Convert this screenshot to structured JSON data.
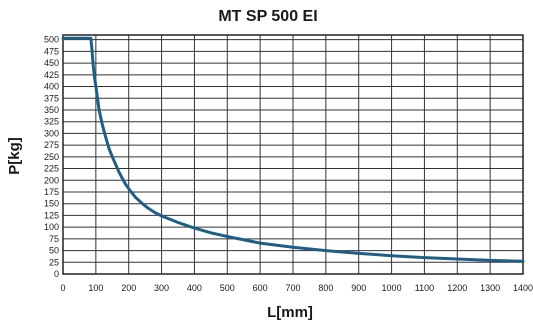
{
  "chart_data": {
    "type": "line",
    "title": "MT SP 500 EI",
    "xlabel": "L[mm]",
    "ylabel": "P[kg]",
    "xlim": [
      0,
      1400
    ],
    "ylim": [
      0,
      510
    ],
    "x_ticks": [
      0,
      100,
      200,
      300,
      400,
      500,
      600,
      700,
      800,
      900,
      1000,
      1100,
      1200,
      1300,
      1400
    ],
    "y_ticks": [
      0,
      25,
      50,
      75,
      100,
      125,
      150,
      175,
      200,
      225,
      250,
      275,
      300,
      325,
      350,
      375,
      400,
      425,
      450,
      475,
      500
    ],
    "x_tick_labels": [
      "0",
      "100",
      "200",
      "300",
      "400",
      "500",
      "600",
      "700",
      "800",
      "900",
      "1000",
      "1100",
      "1200",
      "1300",
      "1400"
    ],
    "y_tick_labels": [
      "0",
      "25",
      "50",
      "75",
      "100",
      "125",
      "150",
      "175",
      "200",
      "225",
      "250",
      "275",
      "300",
      "325",
      "350",
      "375",
      "400",
      "425",
      "450",
      "475",
      "500"
    ],
    "grid": true,
    "series": [
      {
        "color": "#1f5f86",
        "x": [
          0,
          85,
          88,
          92,
          96,
          100,
          110,
          120,
          130,
          140,
          150,
          160,
          170,
          180,
          190,
          200,
          210,
          220,
          240,
          260,
          280,
          300,
          350,
          400,
          450,
          500,
          600,
          700,
          800,
          900,
          1000,
          1100,
          1200,
          1300,
          1400
        ],
        "y": [
          503,
          503,
          480,
          445,
          420,
          400,
          350,
          318,
          292,
          268,
          250,
          234,
          218,
          205,
          192,
          182,
          173,
          164,
          151,
          140,
          131,
          124,
          110,
          98,
          88,
          80,
          66,
          57,
          50,
          44,
          39,
          35,
          32,
          29,
          27
        ]
      }
    ]
  }
}
